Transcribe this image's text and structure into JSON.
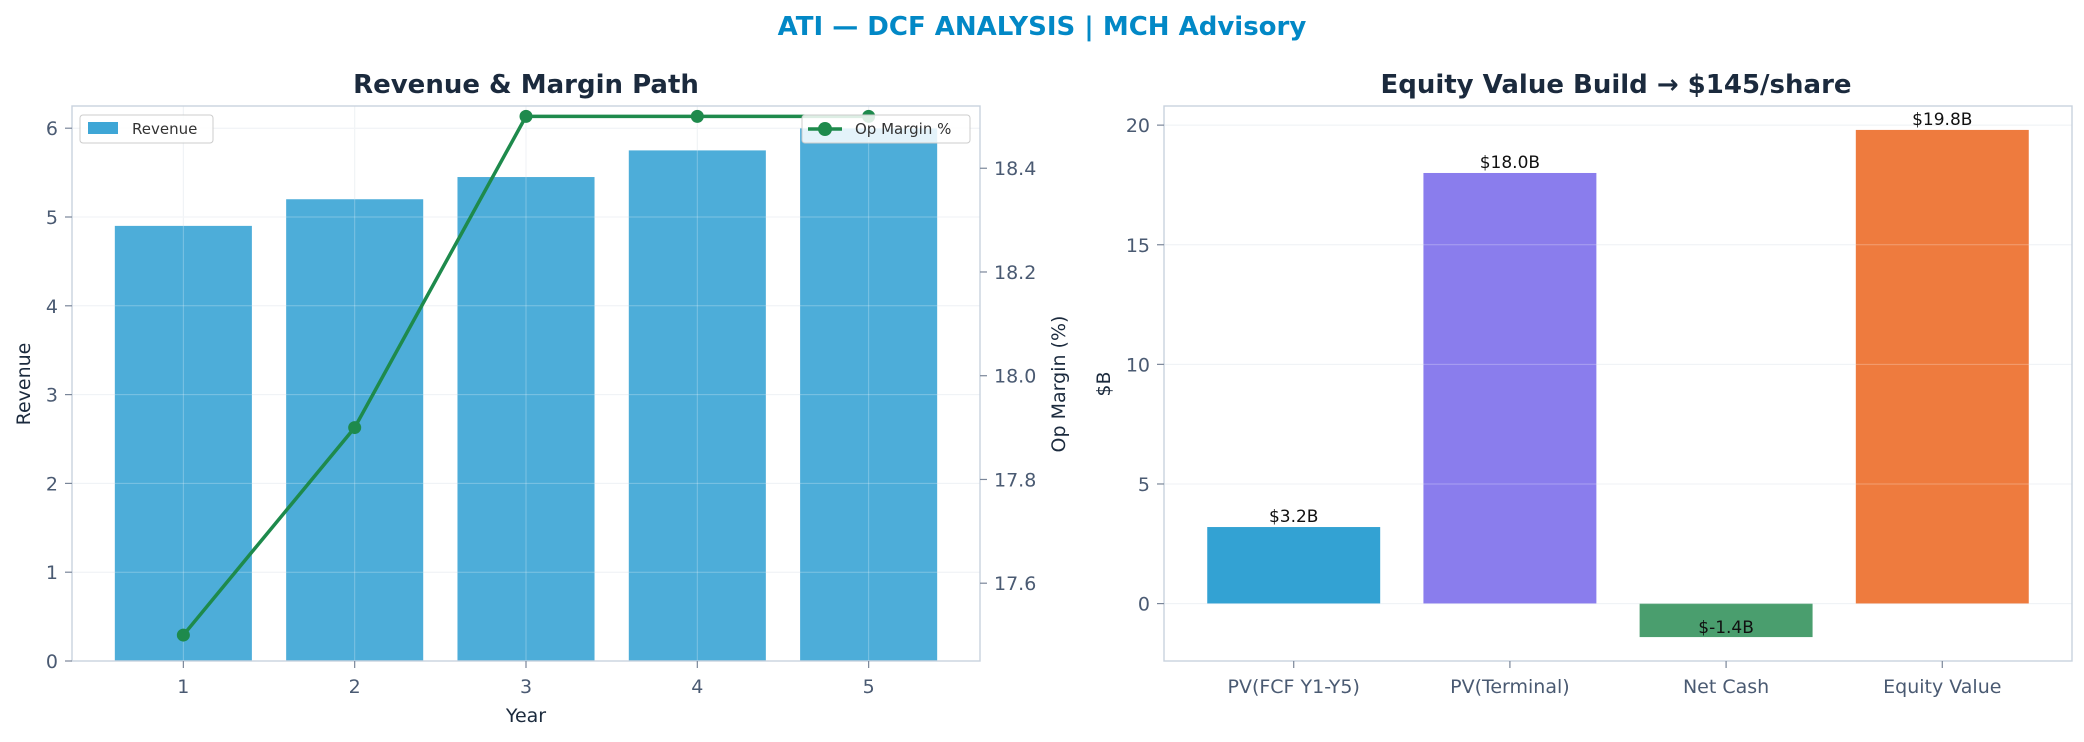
{
  "figure_title": "ATI — DCF ANALYSIS | MCH Advisory",
  "chart_data": [
    {
      "type": "bar",
      "title": "Revenue & Margin Path",
      "xlabel": "Year",
      "ylabel": "Revenue",
      "y2label": "Op Margin (%)",
      "categories": [
        "1",
        "2",
        "3",
        "4",
        "5"
      ],
      "ylim": [
        0,
        6.25
      ],
      "yticks": [
        "0",
        "1",
        "2",
        "3",
        "4",
        "5",
        "6"
      ],
      "y2lim": [
        17.45,
        18.52
      ],
      "y2ticks": [
        "17.6",
        "17.8",
        "18.0",
        "18.2",
        "18.4"
      ],
      "series": [
        {
          "name": "Revenue",
          "type": "bar",
          "axis": "left",
          "color": "#3ea6d6",
          "values": [
            4.9,
            5.2,
            5.45,
            5.75,
            6.0
          ]
        },
        {
          "name": "Op Margin %",
          "type": "line",
          "axis": "right",
          "color": "#1e8a4c",
          "values": [
            17.5,
            17.9,
            18.5,
            18.5,
            18.5
          ]
        }
      ],
      "legend": [
        "top-left",
        "top-right"
      ],
      "grid": true
    },
    {
      "type": "bar",
      "title": "Equity Value Build → $145/share",
      "xlabel": "",
      "ylabel": "$B",
      "categories": [
        "PV(FCF Y1-Y5)",
        "PV(Terminal)",
        "Net Cash",
        "Equity Value"
      ],
      "values": [
        3.2,
        18.0,
        -1.4,
        19.8
      ],
      "data_labels": [
        "$3.2B",
        "$18.0B",
        "$-1.4B",
        "$19.8B"
      ],
      "colors": [
        "#33a2d3",
        "#8a7ded",
        "#4a9e6e",
        "#ee7b3e"
      ],
      "ylim": [
        -2.4,
        20.8
      ],
      "yticks": [
        "0",
        "5",
        "10",
        "15",
        "20"
      ],
      "grid": true
    }
  ]
}
